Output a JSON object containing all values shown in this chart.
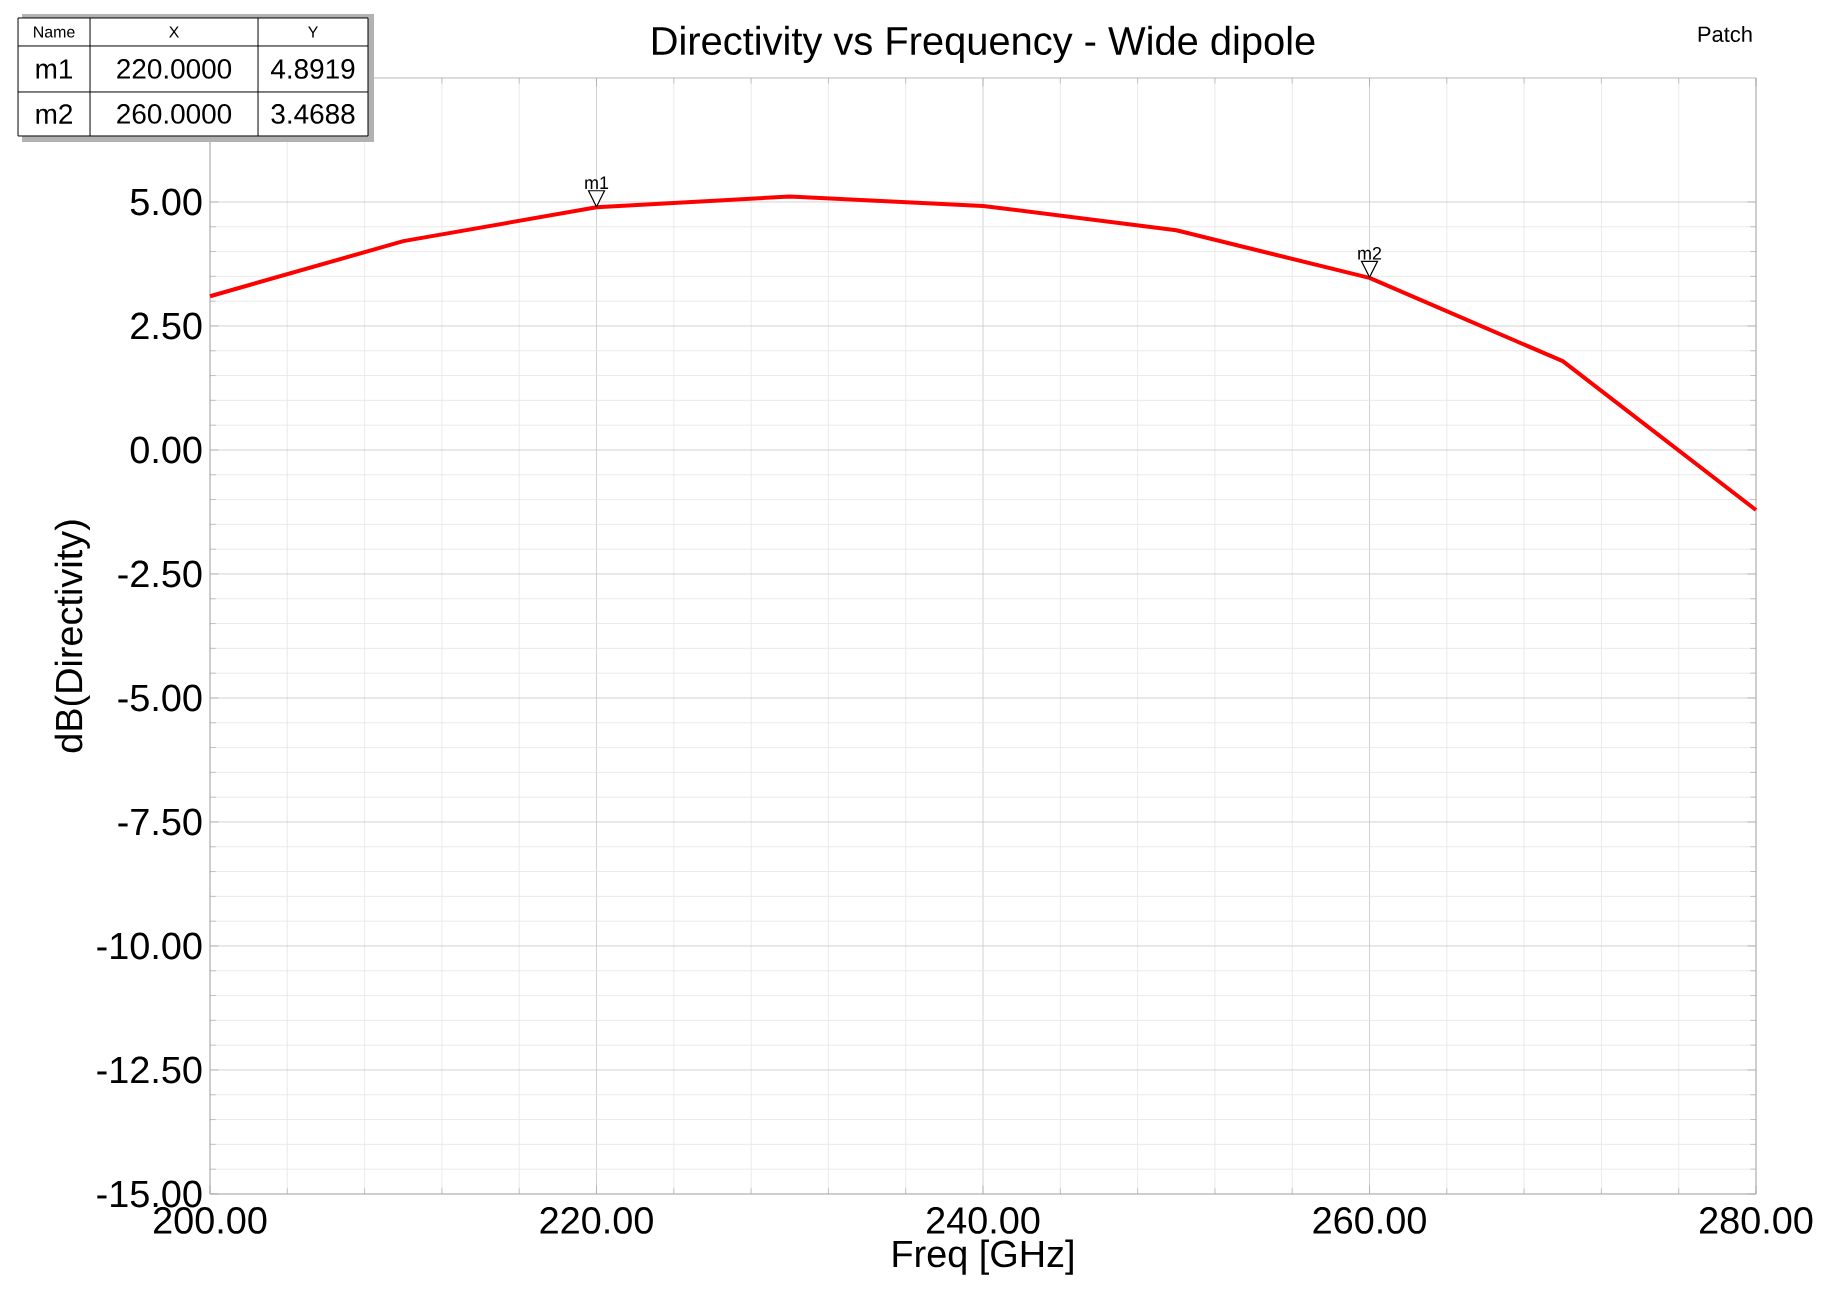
{
  "chart_data": {
    "type": "line",
    "title": "Directivity vs Frequency - Wide dipole",
    "xlabel": "Freq [GHz]",
    "ylabel": "dB(Directivity)",
    "x": [
      200,
      210,
      220,
      230,
      240,
      250,
      260,
      270,
      280
    ],
    "series": [
      {
        "color": "#ff0000",
        "values": [
          3.1,
          4.21,
          4.8919,
          5.11,
          4.92,
          4.43,
          3.4688,
          1.79,
          -1.21
        ]
      }
    ],
    "xlim": [
      200,
      280
    ],
    "ylim": [
      -15,
      7.5
    ],
    "xticks": [
      {
        "value": 200,
        "label": "200.00"
      },
      {
        "value": 220,
        "label": "220.00"
      },
      {
        "value": 240,
        "label": "240.00"
      },
      {
        "value": 260,
        "label": "260.00"
      },
      {
        "value": 280,
        "label": "280.00"
      }
    ],
    "yticks": [
      {
        "value": -15,
        "label": "-15.00"
      },
      {
        "value": -12.5,
        "label": "-12.50"
      },
      {
        "value": -10,
        "label": "-10.00"
      },
      {
        "value": -7.5,
        "label": "-7.50"
      },
      {
        "value": -5,
        "label": "-5.00"
      },
      {
        "value": -2.5,
        "label": "-2.50"
      },
      {
        "value": 0,
        "label": "0.00"
      },
      {
        "value": 2.5,
        "label": "2.50"
      },
      {
        "value": 5,
        "label": "5.00"
      }
    ],
    "grid": true,
    "marker": "none",
    "line_style": "solid",
    "annotations": [
      "Name",
      "X",
      "Y",
      "m1",
      "220.0000",
      "4.8919",
      "m2",
      "260.0000",
      "3.4688",
      "Patch",
      {
        "text": "m1",
        "x": 220,
        "y": 4.8919
      },
      {
        "text": "m2",
        "x": 260,
        "y": 3.4688
      }
    ]
  }
}
